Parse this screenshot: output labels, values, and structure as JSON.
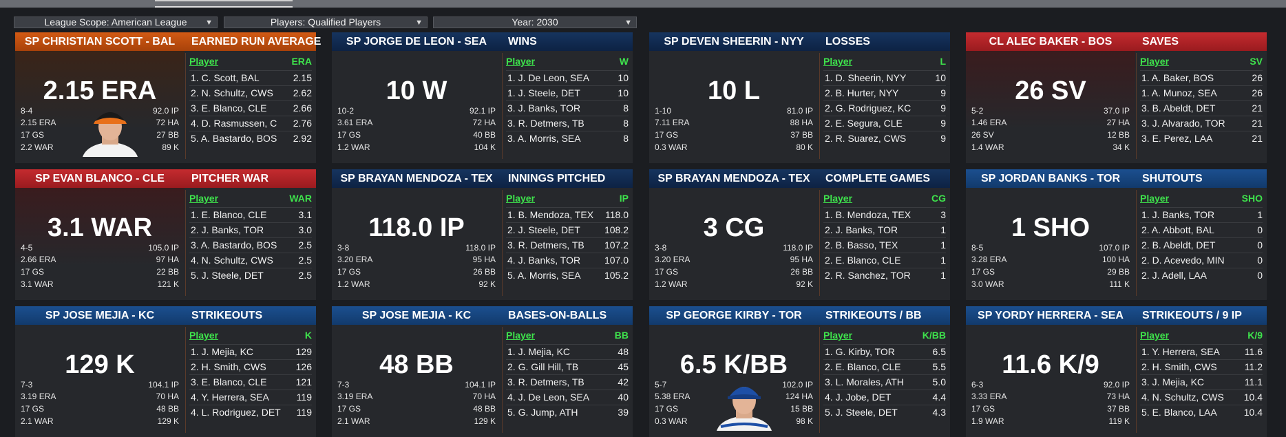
{
  "filters": {
    "scope": "League Scope: American League",
    "players": "Players: Qualified Players",
    "year": "Year: 2030"
  },
  "colors": {
    "orange": "#c14f10",
    "navy": "#122c52",
    "red": "#b02327",
    "blue": "#174478",
    "green_header": "#3ee24c"
  },
  "cards": [
    {
      "theme": "orange",
      "player": "SP CHRISTIAN SCOTT - BAL",
      "stat_title": "EARNED RUN AVERAGE",
      "big": "2.15 ERA",
      "left": [
        "8-4",
        "2.15 ERA",
        "17 GS",
        "2.2 WAR"
      ],
      "right": [
        "92.0 IP",
        "72 HA",
        "27 BB",
        "89 K"
      ],
      "col_player": "Player",
      "col_stat": "ERA",
      "portrait": "orioles",
      "rows": [
        [
          "1. C. Scott, BAL",
          "2.15"
        ],
        [
          "2. N. Schultz, CWS",
          "2.62"
        ],
        [
          "3. E. Blanco, CLE",
          "2.66"
        ],
        [
          "4. D. Rasmussen, C",
          "2.76"
        ],
        [
          "5. A. Bastardo, BOS",
          "2.92"
        ]
      ]
    },
    {
      "theme": "navy",
      "player": "SP JORGE DE LEON - SEA",
      "stat_title": "WINS",
      "big": "10 W",
      "left": [
        "10-2",
        "3.61 ERA",
        "17 GS",
        "1.2 WAR"
      ],
      "right": [
        "92.1 IP",
        "72 HA",
        "40 BB",
        "104 K"
      ],
      "col_player": "Player",
      "col_stat": "W",
      "rows": [
        [
          "1. J. De Leon, SEA",
          "10"
        ],
        [
          "1. J. Steele, DET",
          "10"
        ],
        [
          "3. J. Banks, TOR",
          "8"
        ],
        [
          "3. R. Detmers, TB",
          "8"
        ],
        [
          "3. A. Morris, SEA",
          "8"
        ]
      ]
    },
    {
      "theme": "navy",
      "player": "SP DEVEN SHEERIN - NYY",
      "stat_title": "LOSSES",
      "big": "10 L",
      "left": [
        "1-10",
        "7.11 ERA",
        "17 GS",
        "0.3 WAR"
      ],
      "right": [
        "81.0 IP",
        "88 HA",
        "37 BB",
        "80 K"
      ],
      "col_player": "Player",
      "col_stat": "L",
      "rows": [
        [
          "1. D. Sheerin, NYY",
          "10"
        ],
        [
          "2. B. Hurter, NYY",
          "9"
        ],
        [
          "2. G. Rodriguez, KC",
          "9"
        ],
        [
          "2. E. Segura, CLE",
          "9"
        ],
        [
          "2. R. Suarez, CWS",
          "9"
        ]
      ]
    },
    {
      "theme": "red",
      "player": "CL ALEC BAKER - BOS",
      "stat_title": "SAVES",
      "big": "26 SV",
      "left": [
        "5-2",
        "1.46 ERA",
        "26 SV",
        "1.4 WAR"
      ],
      "right": [
        "37.0 IP",
        "27 HA",
        "12 BB",
        "34 K"
      ],
      "col_player": "Player",
      "col_stat": "SV",
      "rows": [
        [
          "1. A. Baker, BOS",
          "26"
        ],
        [
          "1. A. Munoz, SEA",
          "26"
        ],
        [
          "3. B. Abeldt, DET",
          "21"
        ],
        [
          "3. J. Alvarado, TOR",
          "21"
        ],
        [
          "3. E. Perez, LAA",
          "21"
        ]
      ]
    },
    {
      "theme": "red",
      "player": "SP EVAN BLANCO - CLE",
      "stat_title": "PITCHER WAR",
      "big": "3.1 WAR",
      "left": [
        "4-5",
        "2.66 ERA",
        "17 GS",
        "3.1 WAR"
      ],
      "right": [
        "105.0 IP",
        "97 HA",
        "22 BB",
        "121 K"
      ],
      "col_player": "Player",
      "col_stat": "WAR",
      "rows": [
        [
          "1. E. Blanco, CLE",
          "3.1"
        ],
        [
          "2. J. Banks, TOR",
          "3.0"
        ],
        [
          "3. A. Bastardo, BOS",
          "2.5"
        ],
        [
          "4. N. Schultz, CWS",
          "2.5"
        ],
        [
          "5. J. Steele, DET",
          "2.5"
        ]
      ]
    },
    {
      "theme": "navy",
      "player": "SP BRAYAN MENDOZA - TEX",
      "stat_title": "INNINGS PITCHED",
      "big": "118.0 IP",
      "left": [
        "3-8",
        "3.20 ERA",
        "17 GS",
        "1.2 WAR"
      ],
      "right": [
        "118.0 IP",
        "95 HA",
        "26 BB",
        "92 K"
      ],
      "col_player": "Player",
      "col_stat": "IP",
      "rows": [
        [
          "1. B. Mendoza, TEX",
          "118.0"
        ],
        [
          "2. J. Steele, DET",
          "108.2"
        ],
        [
          "3. R. Detmers, TB",
          "107.2"
        ],
        [
          "4. J. Banks, TOR",
          "107.0"
        ],
        [
          "5. A. Morris, SEA",
          "105.2"
        ]
      ]
    },
    {
      "theme": "navy",
      "player": "SP BRAYAN MENDOZA - TEX",
      "stat_title": "COMPLETE GAMES",
      "big": "3 CG",
      "left": [
        "3-8",
        "3.20 ERA",
        "17 GS",
        "1.2 WAR"
      ],
      "right": [
        "118.0 IP",
        "95 HA",
        "26 BB",
        "92 K"
      ],
      "col_player": "Player",
      "col_stat": "CG",
      "rows": [
        [
          "1. B. Mendoza, TEX",
          "3"
        ],
        [
          "2. J. Banks, TOR",
          "1"
        ],
        [
          "2. B. Basso, TEX",
          "1"
        ],
        [
          "2. E. Blanco, CLE",
          "1"
        ],
        [
          "2. R. Sanchez, TOR",
          "1"
        ]
      ]
    },
    {
      "theme": "blue",
      "player": "SP JORDAN BANKS - TOR",
      "stat_title": "SHUTOUTS",
      "big": "1 SHO",
      "left": [
        "8-5",
        "3.28 ERA",
        "17 GS",
        "3.0 WAR"
      ],
      "right": [
        "107.0 IP",
        "100 HA",
        "29 BB",
        "111 K"
      ],
      "col_player": "Player",
      "col_stat": "SHO",
      "rows": [
        [
          "1. J. Banks, TOR",
          "1"
        ],
        [
          "2. A. Abbott, BAL",
          "0"
        ],
        [
          "2. B. Abeldt, DET",
          "0"
        ],
        [
          "2. D. Acevedo, MIN",
          "0"
        ],
        [
          "2. J. Adell, LAA",
          "0"
        ]
      ]
    },
    {
      "theme": "blue",
      "player": "SP JOSE MEJIA - KC",
      "stat_title": "STRIKEOUTS",
      "big": "129 K",
      "left": [
        "7-3",
        "3.19 ERA",
        "17 GS",
        "2.1 WAR"
      ],
      "right": [
        "104.1 IP",
        "70 HA",
        "48 BB",
        "129 K"
      ],
      "col_player": "Player",
      "col_stat": "K",
      "rows": [
        [
          "1. J. Mejia, KC",
          "129"
        ],
        [
          "2. H. Smith, CWS",
          "126"
        ],
        [
          "3. E. Blanco, CLE",
          "121"
        ],
        [
          "4. Y. Herrera, SEA",
          "119"
        ],
        [
          "4. L. Rodriguez, DET",
          "119"
        ]
      ]
    },
    {
      "theme": "blue",
      "player": "SP JOSE MEJIA - KC",
      "stat_title": "BASES-ON-BALLS",
      "big": "48 BB",
      "left": [
        "7-3",
        "3.19 ERA",
        "17 GS",
        "2.1 WAR"
      ],
      "right": [
        "104.1 IP",
        "70 HA",
        "48 BB",
        "129 K"
      ],
      "col_player": "Player",
      "col_stat": "BB",
      "rows": [
        [
          "1. J. Mejia, KC",
          "48"
        ],
        [
          "2. G. Gill Hill, TB",
          "45"
        ],
        [
          "3. R. Detmers, TB",
          "42"
        ],
        [
          "4. J. De Leon, SEA",
          "40"
        ],
        [
          "5. G. Jump, ATH",
          "39"
        ]
      ]
    },
    {
      "theme": "blue",
      "player": "SP GEORGE KIRBY - TOR",
      "stat_title": "STRIKEOUTS / BB",
      "big": "6.5 K/BB",
      "left": [
        "5-7",
        "5.38 ERA",
        "17 GS",
        "0.3 WAR"
      ],
      "right": [
        "102.0 IP",
        "124 HA",
        "15 BB",
        "98 K"
      ],
      "col_player": "Player",
      "col_stat": "K/BB",
      "portrait": "bluejays",
      "rows": [
        [
          "1. G. Kirby, TOR",
          "6.5"
        ],
        [
          "2. E. Blanco, CLE",
          "5.5"
        ],
        [
          "3. L. Morales, ATH",
          "5.0"
        ],
        [
          "4. J. Jobe, DET",
          "4.4"
        ],
        [
          "5. J. Steele, DET",
          "4.3"
        ]
      ]
    },
    {
      "theme": "blue",
      "player": "SP YORDY HERRERA - SEA",
      "stat_title": "STRIKEOUTS / 9 IP",
      "big": "11.6 K/9",
      "left": [
        "6-3",
        "3.33 ERA",
        "17 GS",
        "1.9 WAR"
      ],
      "right": [
        "92.0 IP",
        "73 HA",
        "37 BB",
        "119 K"
      ],
      "col_player": "Player",
      "col_stat": "K/9",
      "rows": [
        [
          "1. Y. Herrera, SEA",
          "11.6"
        ],
        [
          "2. H. Smith, CWS",
          "11.2"
        ],
        [
          "3. J. Mejia, KC",
          "11.1"
        ],
        [
          "4. N. Schultz, CWS",
          "10.4"
        ],
        [
          "5. E. Blanco, LAA",
          "10.4"
        ]
      ]
    }
  ]
}
